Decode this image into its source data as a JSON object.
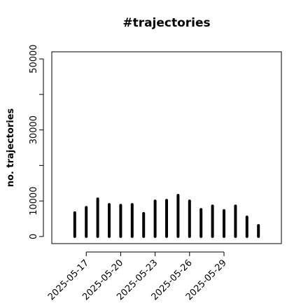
{
  "chart_data": {
    "type": "histogram-lines",
    "title": "#trajectories",
    "y_label": "no. trajectories",
    "x": [
      "2025-05-16",
      "2025-05-17",
      "2025-05-18",
      "2025-05-19",
      "2025-05-20",
      "2025-05-21",
      "2025-05-22",
      "2025-05-23",
      "2025-05-24",
      "2025-05-25",
      "2025-05-26",
      "2025-05-27",
      "2025-05-28",
      "2025-05-29",
      "2025-05-30",
      "2025-05-31",
      "2025-06-01"
    ],
    "values": [
      6700,
      8200,
      10600,
      9000,
      8800,
      9000,
      6500,
      10000,
      10200,
      11600,
      10000,
      7600,
      8600,
      7300,
      8600,
      5500,
      3100
    ],
    "color": "#000000",
    "xlim": [
      "2025-05-14",
      "2025-06-03"
    ],
    "xticks": [
      "2025-05-17",
      "2025-05-20",
      "2025-05-23",
      "2025-05-26",
      "2025-05-29"
    ],
    "ylim": [
      -2000,
      52000
    ],
    "ytick_marks": [
      0,
      10000,
      20000,
      30000,
      40000,
      50000
    ],
    "yticks": [
      0,
      10000,
      30000,
      50000
    ]
  }
}
